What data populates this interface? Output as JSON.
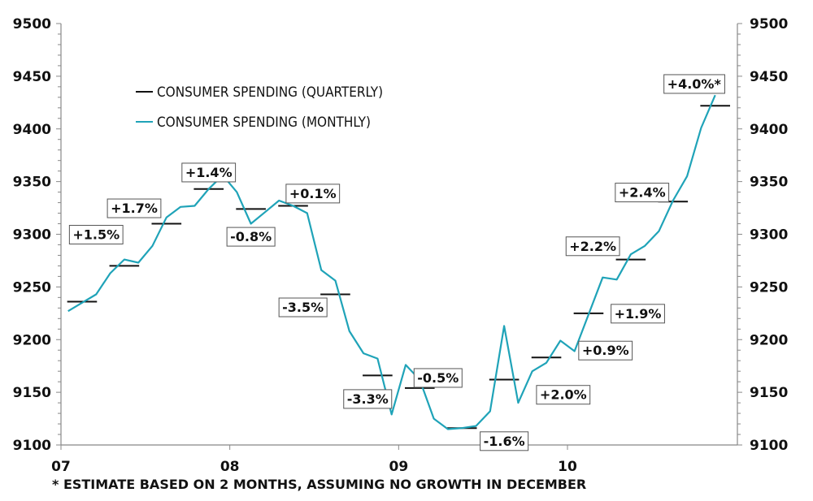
{
  "chart_data": {
    "type": "line",
    "title": "",
    "xlabel": "",
    "ylabel": "",
    "ylim": [
      9100,
      9500
    ],
    "y_ticks": [
      9100,
      9150,
      9200,
      9250,
      9300,
      9350,
      9400,
      9450,
      9500
    ],
    "y_tick_labels": [
      "9100",
      "9150",
      "9200",
      "9250",
      "9300",
      "9350",
      "9400",
      "9450",
      "9500"
    ],
    "y_minor_step": 10,
    "right_axis_mirrors_left": true,
    "x_tick_labels": [
      "07",
      "08",
      "09",
      "10"
    ],
    "x_range_months": [
      0,
      48
    ],
    "grid": false,
    "legend_position": "top-left",
    "legend": [
      {
        "label": "CONSUMER SPENDING (QUARTERLY)",
        "color": "#111111"
      },
      {
        "label": "CONSUMER SPENDING (MONTHLY)",
        "color": "#1fa3b8"
      }
    ],
    "series": [
      {
        "name": "CONSUMER SPENDING (MONTHLY)",
        "type": "line",
        "color": "#1fa3b8",
        "x_months": [
          0,
          1,
          2,
          3,
          4,
          5,
          6,
          7,
          8,
          9,
          10,
          11,
          12,
          13,
          14,
          15,
          16,
          17,
          18,
          19,
          20,
          21,
          22,
          23,
          24,
          25,
          26,
          27,
          28,
          29,
          30,
          31,
          32,
          33,
          34,
          35,
          36,
          37,
          38,
          39,
          40,
          41,
          42,
          43,
          44,
          45,
          46
        ],
        "values": [
          9227,
          9235,
          9243,
          9263,
          9276,
          9273,
          9289,
          9316,
          9326,
          9327,
          9343,
          9356,
          9340,
          9310,
          9321,
          9332,
          9327,
          9320,
          9266,
          9256,
          9208,
          9187,
          9182,
          9129,
          9176,
          9162,
          9125,
          9115,
          9116,
          9118,
          9132,
          9213,
          9140,
          9170,
          9178,
          9199,
          9189,
          9224,
          9259,
          9257,
          9281,
          9289,
          9303,
          9332,
          9355,
          9401,
          9432
        ]
      },
      {
        "name": "CONSUMER SPENDING (QUARTERLY)",
        "type": "step-segments",
        "color": "#111111",
        "quarters": [
          "Q1-07",
          "Q2-07",
          "Q3-07",
          "Q4-07",
          "Q1-08",
          "Q2-08",
          "Q3-08",
          "Q4-08",
          "Q1-09",
          "Q2-09",
          "Q3-09",
          "Q4-09",
          "Q1-10",
          "Q2-10",
          "Q3-10",
          "Q4-10"
        ],
        "values": [
          9236,
          9270,
          9310,
          9343,
          9324,
          9327,
          9243,
          9166,
          9154,
          9116,
          9162,
          9183,
          9225,
          9276,
          9331,
          9422
        ]
      }
    ],
    "annotations": [
      {
        "quarter": 0,
        "text": "+1.5%",
        "anchor_value": 9300,
        "anchor_month": 2.0
      },
      {
        "quarter": 1,
        "text": "+1.7%",
        "anchor_value": 9325,
        "anchor_month": 4.7
      },
      {
        "quarter": 2,
        "text": "+1.4%",
        "anchor_value": 9359,
        "anchor_month": 10.0
      },
      {
        "quarter": 3,
        "text": "-0.8%",
        "anchor_value": 9298,
        "anchor_month": 13.0
      },
      {
        "quarter": 4,
        "text": "+0.1%",
        "anchor_value": 9339,
        "anchor_month": 17.4
      },
      {
        "quarter": 5,
        "text": "-3.5%",
        "anchor_value": 9231,
        "anchor_month": 16.7
      },
      {
        "quarter": 6,
        "text": "-3.3%",
        "anchor_value": 9144,
        "anchor_month": 21.3
      },
      {
        "quarter": 7,
        "text": "-0.5%",
        "anchor_value": 9164,
        "anchor_month": 26.3
      },
      {
        "quarter": 8,
        "text": "-1.6%",
        "anchor_value": 9104,
        "anchor_month": 31.0
      },
      {
        "quarter": 9,
        "text": "+2.0%",
        "anchor_value": 9148,
        "anchor_month": 35.2
      },
      {
        "quarter": 10,
        "text": "+0.9%",
        "anchor_value": 9190,
        "anchor_month": 38.2
      },
      {
        "quarter": 11,
        "text": "+1.9%",
        "anchor_value": 9225,
        "anchor_month": 40.5
      },
      {
        "quarter": 12,
        "text": "+2.2%",
        "anchor_value": 9289,
        "anchor_month": 37.3
      },
      {
        "quarter": 13,
        "text": "+2.4%",
        "anchor_value": 9340,
        "anchor_month": 40.8
      },
      {
        "quarter": 14,
        "text": "+4.0%*",
        "anchor_value": 9443,
        "anchor_month": 44.5
      }
    ],
    "footnote": "* ESTIMATE BASED ON 2 MONTHS, ASSUMING NO GROWTH IN DECEMBER"
  }
}
